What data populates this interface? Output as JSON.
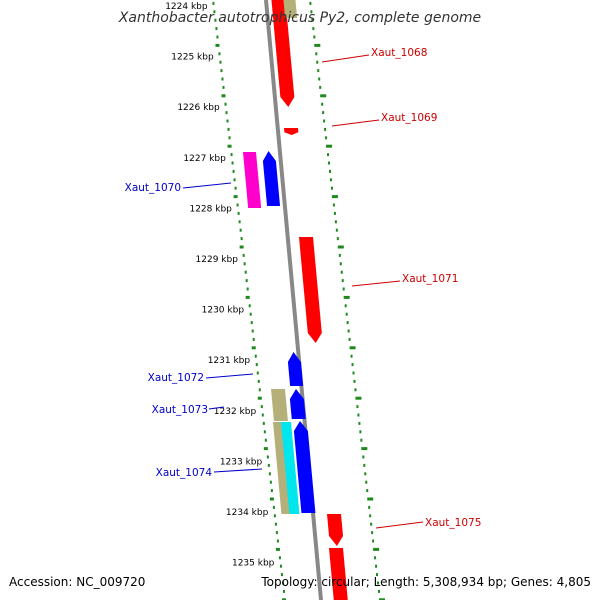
{
  "title": "Xanthobacter autotrophicus Py2, complete genome",
  "accession": "Accession: NC_009720",
  "topology": "Topology: circular; Length: 5,308,934 bp; Genes: 4,805",
  "colors": {
    "forward_gene": "#ff0000",
    "reverse_gene": "#0000ff",
    "magenta_gene": "#ff00cc",
    "olive_gene": "#b5b07a",
    "cyan_gene": "#00e5ee",
    "backbone": "#888888",
    "tick_marks": "#1e8a1e",
    "forward_label": "#cc0000",
    "reverse_label": "#0000cc"
  },
  "kbp_labels": [
    {
      "kbp": 1224,
      "text": "1224 kbp"
    },
    {
      "kbp": 1225,
      "text": "1225 kbp"
    },
    {
      "kbp": 1226,
      "text": "1226 kbp"
    },
    {
      "kbp": 1227,
      "text": "1227 kbp"
    },
    {
      "kbp": 1228,
      "text": "1228 kbp"
    },
    {
      "kbp": 1229,
      "text": "1229 kbp"
    },
    {
      "kbp": 1230,
      "text": "1230 kbp"
    },
    {
      "kbp": 1231,
      "text": "1231 kbp"
    },
    {
      "kbp": 1232,
      "text": "1232 kbp"
    },
    {
      "kbp": 1233,
      "text": "1233 kbp"
    },
    {
      "kbp": 1234,
      "text": "1234 kbp"
    },
    {
      "kbp": 1235,
      "text": "1235 kbp"
    }
  ],
  "gene_labels": [
    {
      "name": "Xaut_1068",
      "strand": "forward"
    },
    {
      "name": "Xaut_1069",
      "strand": "forward"
    },
    {
      "name": "Xaut_1070",
      "strand": "reverse"
    },
    {
      "name": "Xaut_1071",
      "strand": "forward"
    },
    {
      "name": "Xaut_1072",
      "strand": "reverse"
    },
    {
      "name": "Xaut_1073",
      "strand": "reverse"
    },
    {
      "name": "Xaut_1074",
      "strand": "reverse"
    },
    {
      "name": "Xaut_1075",
      "strand": "forward"
    }
  ]
}
